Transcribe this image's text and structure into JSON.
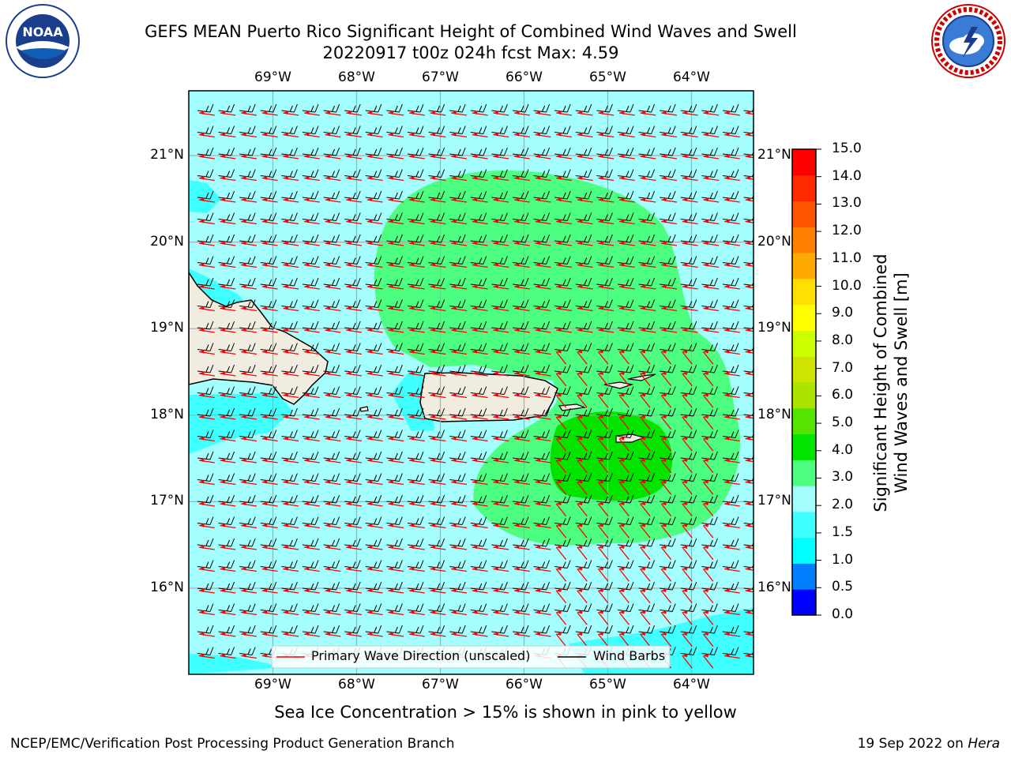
{
  "title": {
    "line1": "GEFS MEAN Puerto Rico Significant Height of Combined Wind Waves and Swell",
    "line2": "20220917 t00z 024h fcst   Max: 4.59"
  },
  "logos": {
    "left": {
      "text": "NOAA",
      "ring_text": "NATIONAL OCEANIC AND ATMOSPHERIC ADMINISTRATION · U.S. DEPARTMENT OF COMMERCE",
      "icon": "noaa-logo"
    },
    "right": {
      "ring_text": "NATIONAL WEATHER SERVICE",
      "icon": "nws-logo"
    }
  },
  "map": {
    "lon_labels": [
      "69°W",
      "68°W",
      "67°W",
      "66°W",
      "65°W",
      "64°W"
    ],
    "lat_labels": [
      "21°N",
      "20°N",
      "19°N",
      "18°N",
      "17°N",
      "16°N"
    ],
    "lon_values": [
      -69,
      -68,
      -67,
      -66,
      -65,
      -64
    ],
    "lat_values": [
      21,
      20,
      19,
      18,
      17,
      16
    ],
    "background_color": "#a4fefe",
    "land_color": "#f0ecdf"
  },
  "legend": {
    "wave_label": "Primary Wave Direction (unscaled)",
    "barb_label": "Wind Barbs",
    "wave_color": "#ff0000",
    "barb_color": "#000000"
  },
  "colorbar": {
    "title_line1": "Significant Height of Combined",
    "title_line2": "Wind Waves and Swell [m]",
    "ticks": [
      "15.0",
      "14.0",
      "13.0",
      "12.0",
      "11.0",
      "10.0",
      "9.0",
      "8.0",
      "7.0",
      "6.0",
      "5.0",
      "4.0",
      "3.0",
      "2.0",
      "1.5",
      "1.0",
      "0.5",
      "0.0"
    ],
    "colors_bottom_to_top": [
      "#0000ff",
      "#0080ff",
      "#00ffff",
      "#40ffff",
      "#a4fefe",
      "#4dff80",
      "#00e400",
      "#55e400",
      "#aae400",
      "#cce400",
      "#ccff00",
      "#ffff00",
      "#ffe000",
      "#ffaa00",
      "#ff8000",
      "#ff5500",
      "#ff2a00",
      "#ff0000"
    ]
  },
  "caption": "Sea Ice Concentration > 15% is shown in pink to yellow",
  "footer": {
    "left": "NCEP/EMC/Verification Post Processing Product Generation Branch",
    "right_prefix": "19 Sep 2022 on ",
    "right_machine": "Hera"
  }
}
